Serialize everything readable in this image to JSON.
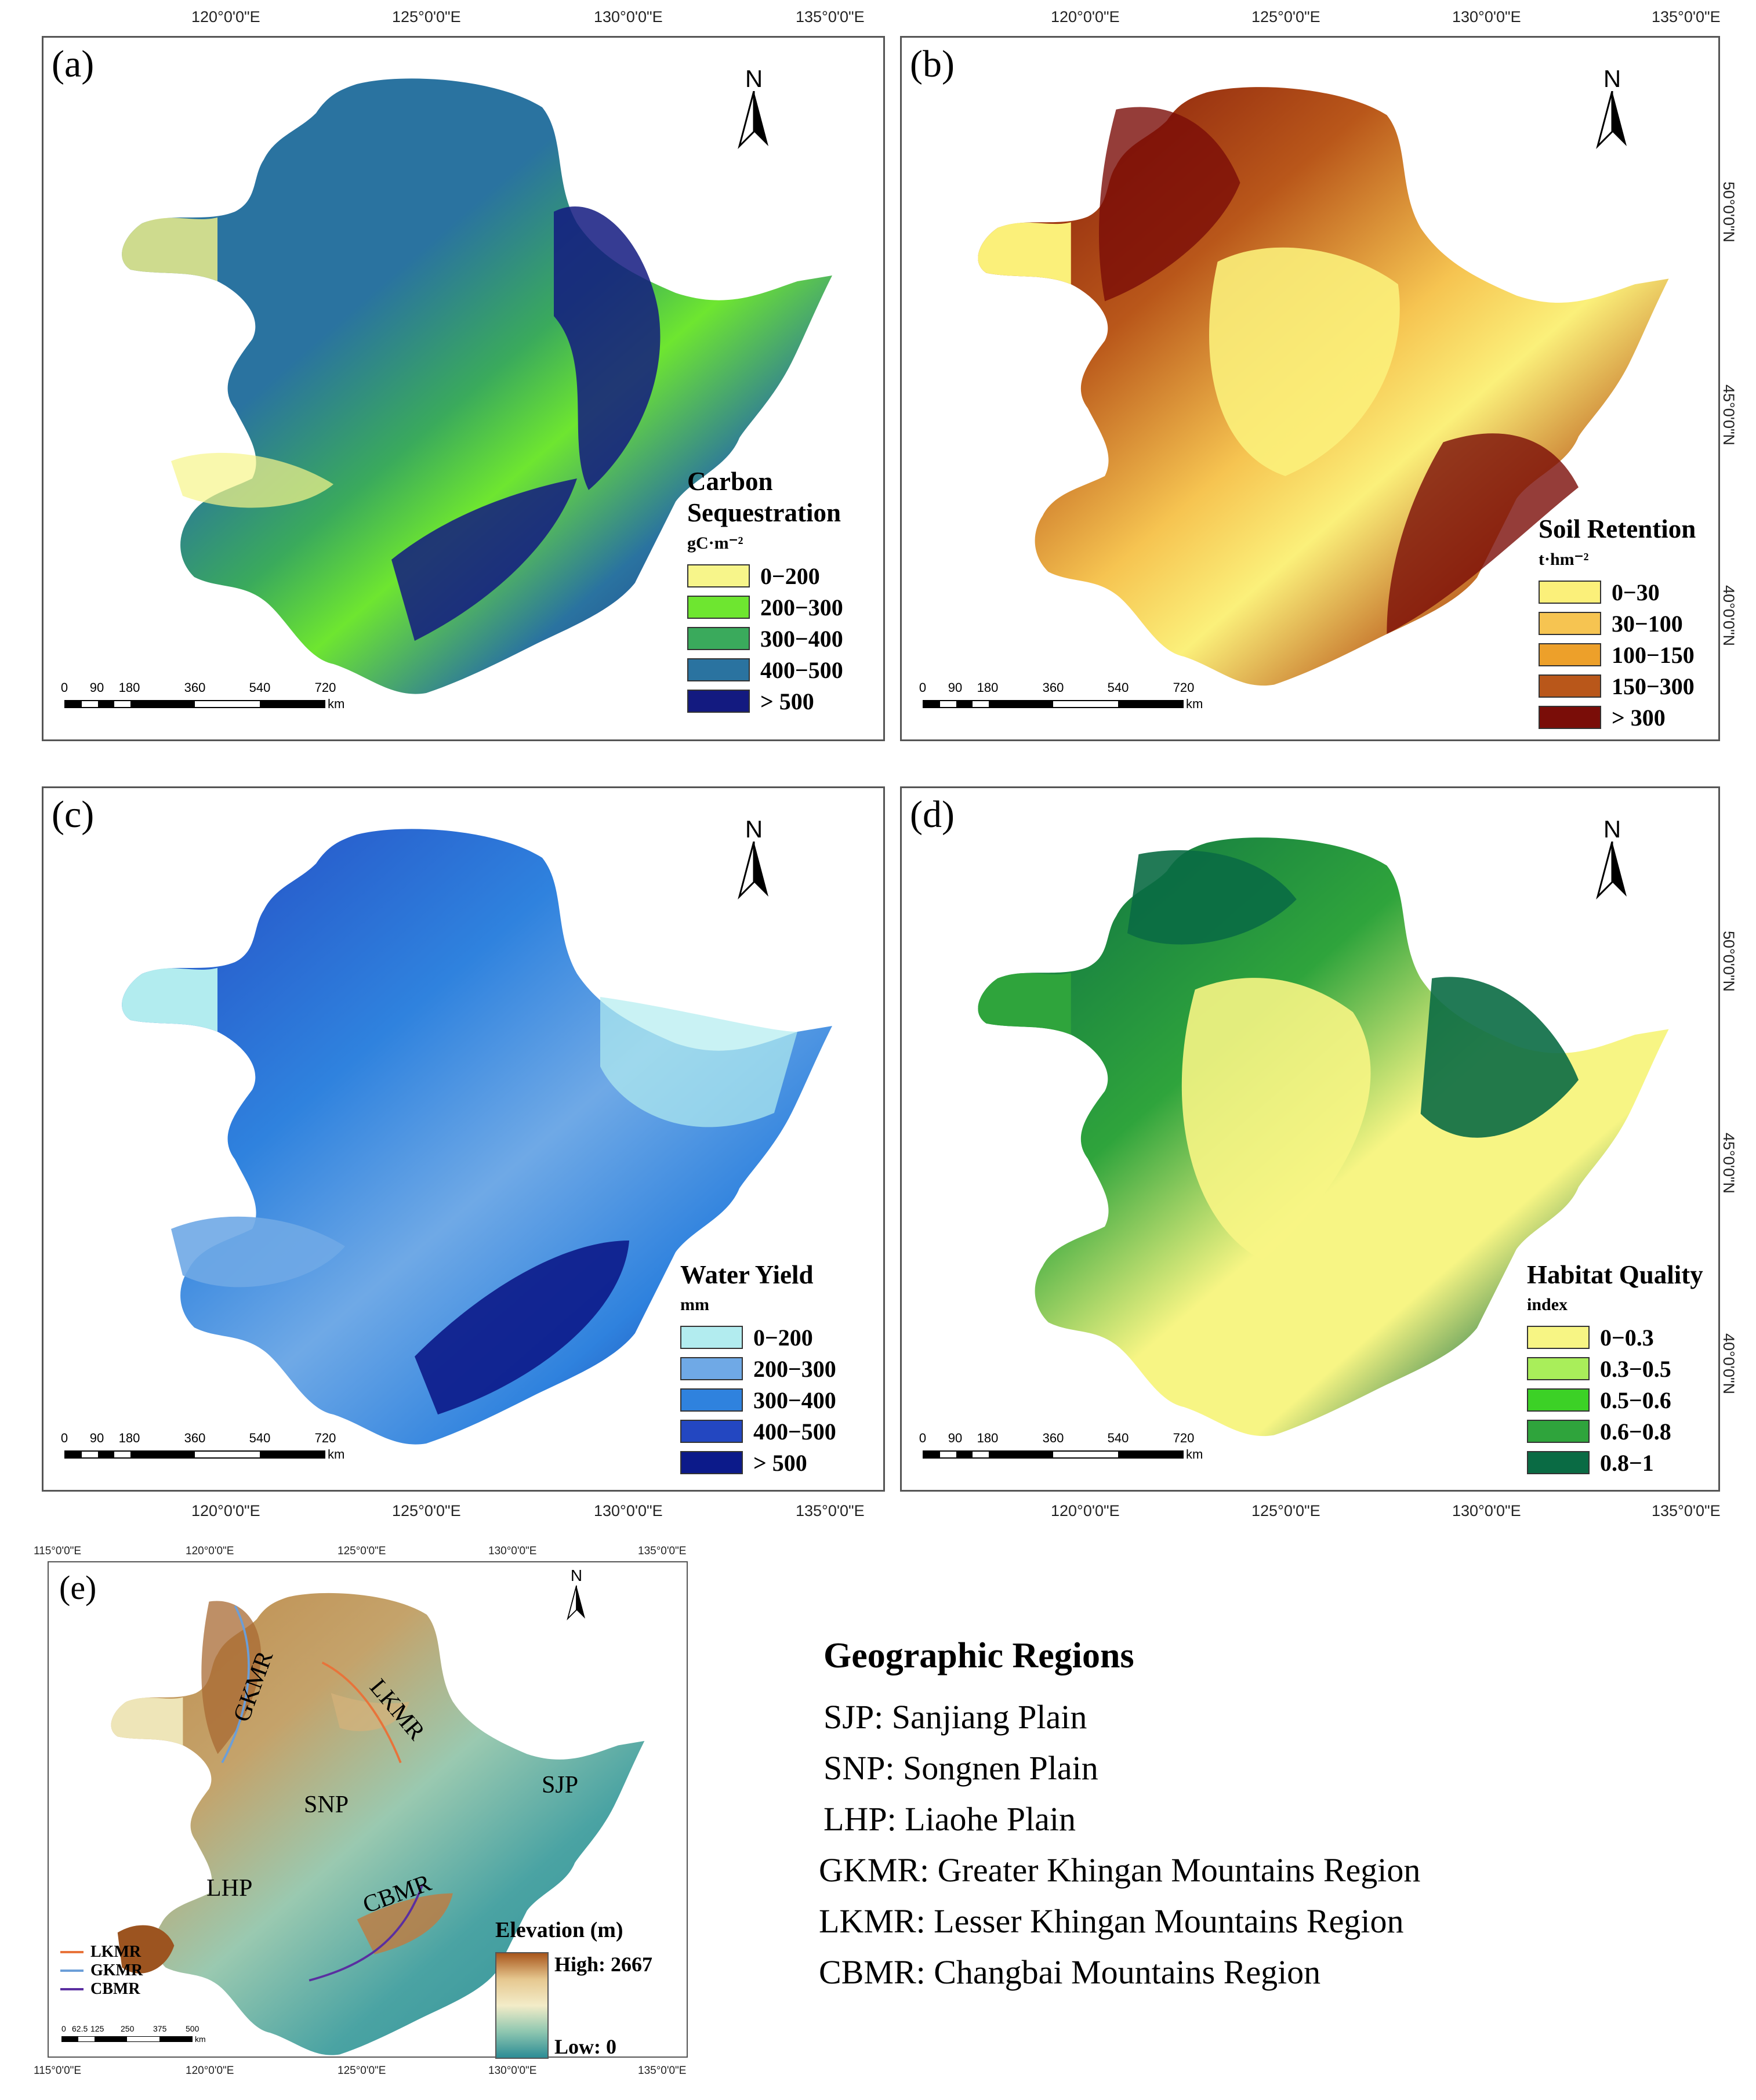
{
  "figure": {
    "top_lon_ticks": [
      "120°0'0\"E",
      "125°0'0\"E",
      "130°0'0\"E",
      "135°0'0\"E"
    ],
    "lat_ticks": [
      "50°0'0\"N",
      "45°0'0\"N",
      "40°0'0\"N"
    ],
    "e_lon_ticks": [
      "115°0'0\"E",
      "120°0'0\"E",
      "125°0'0\"E",
      "130°0'0\"E",
      "135°0'0\"E"
    ],
    "north_label": "N",
    "scale": {
      "labels": [
        "0",
        "90",
        "180",
        "360",
        "540",
        "720"
      ],
      "unit": "km"
    },
    "scale_e": {
      "labels": [
        "0",
        "62.5",
        "125",
        "250",
        "375",
        "500"
      ],
      "unit": "km"
    }
  },
  "panels": [
    {
      "label": "(a)",
      "legend_title": "Carbon Sequestration",
      "legend_unit": "gC·m⁻²",
      "classes": [
        {
          "label": "0−200",
          "color": "#f7f58a"
        },
        {
          "label": "200−300",
          "color": "#6ee630"
        },
        {
          "label": "300−400",
          "color": "#3aaa5c"
        },
        {
          "label": "400−500",
          "color": "#2a73a0"
        },
        {
          "label": "> 500",
          "color": "#131a80"
        }
      ]
    },
    {
      "label": "(b)",
      "legend_title": "Soil Retention",
      "legend_unit": "t·hm⁻²",
      "classes": [
        {
          "label": "0−30",
          "color": "#fbf07a"
        },
        {
          "label": "30−100",
          "color": "#f6c451"
        },
        {
          "label": "100−150",
          "color": "#eda02a"
        },
        {
          "label": "150−300",
          "color": "#b9571a"
        },
        {
          "label": "> 300",
          "color": "#7a0d08"
        }
      ]
    },
    {
      "label": "(c)",
      "legend_title": "Water Yield",
      "legend_unit": "mm",
      "classes": [
        {
          "label": "0−200",
          "color": "#b2ecef"
        },
        {
          "label": "200−300",
          "color": "#6fa9e6"
        },
        {
          "label": "300−400",
          "color": "#2f82de"
        },
        {
          "label": "400−500",
          "color": "#2347c1"
        },
        {
          "label": "> 500",
          "color": "#0c1a8a"
        }
      ]
    },
    {
      "label": "(d)",
      "legend_title": "Habitat Quality",
      "legend_unit": "index",
      "classes": [
        {
          "label": "0−0.3",
          "color": "#f7f584"
        },
        {
          "label": "0.3−0.5",
          "color": "#a9ee5a"
        },
        {
          "label": "0.5−0.6",
          "color": "#3cd126"
        },
        {
          "label": "0.6−0.8",
          "color": "#2fa43c"
        },
        {
          "label": "0.8−1",
          "color": "#0a6b44"
        }
      ]
    }
  ],
  "panel_e": {
    "label": "(e)",
    "region_labels": [
      "GKMR",
      "LKMR",
      "SNP",
      "SJP",
      "LHP",
      "CBMR"
    ],
    "line_legend": [
      {
        "label": "LKMR",
        "color": "#e8733a"
      },
      {
        "label": "GKMR",
        "color": "#6b9ed8"
      },
      {
        "label": "CBMR",
        "color": "#5a2ea0"
      }
    ],
    "elevation_title": "Elevation (m)",
    "elevation_high": "High: 2667",
    "elevation_low": "Low: 0"
  },
  "regions": {
    "title": "Geographic Regions",
    "items": [
      "SJP: Sanjiang Plain",
      "SNP: Songnen Plain",
      "LHP: Liaohe Plain",
      "GKMR: Greater Khingan Mountains Region",
      "LKMR: Lesser Khingan Mountains Region",
      "CBMR: Changbai Mountains Region"
    ]
  }
}
